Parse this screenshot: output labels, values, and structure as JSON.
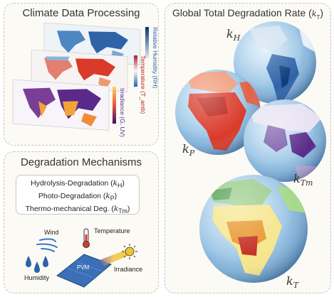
{
  "climate_panel": {
    "title": "Climate Data Processing",
    "axis_labels": {
      "humidity": "Relative Humidity (RH)",
      "temperature": "Temperature (T_amb)",
      "irradiance": "Irradiance (G, UV)"
    }
  },
  "mechanisms_panel": {
    "title": "Degradation Mechanisms",
    "items": [
      {
        "text": "Hydrolysis-Degradation (",
        "symbol": "k",
        "sub": "H",
        "close": ")"
      },
      {
        "text": "Photo-Degradation (",
        "symbol": "k",
        "sub": "P",
        "close": ")"
      },
      {
        "text": "Thermo-mechanical Deg. (",
        "symbol": "k",
        "sub": "Tm",
        "close": ")"
      }
    ],
    "diagram_labels": {
      "wind": "Wind",
      "temperature": "Temperature",
      "pvm": "PVM",
      "irradiance": "Irradiance",
      "humidity": "Humidity"
    }
  },
  "rate_panel": {
    "title_text": "Global Total Degradation Rate (",
    "title_symbol": "k",
    "title_sub": "T",
    "title_close": ")",
    "globe_labels": [
      {
        "symbol": "k",
        "sub": "H"
      },
      {
        "symbol": "k",
        "sub": "P"
      },
      {
        "symbol": "k",
        "sub": "Tm"
      },
      {
        "symbol": "k",
        "sub": "T"
      }
    ]
  },
  "colors": {
    "humidity_blue": "#2f63a8",
    "temperature_red": "#d93a2a",
    "irradiance_purple": "#5a2a8a",
    "irradiance_orange": "#f2a43a",
    "ocean": "#9ec7e6",
    "panel_border": "#c9c4b0"
  }
}
